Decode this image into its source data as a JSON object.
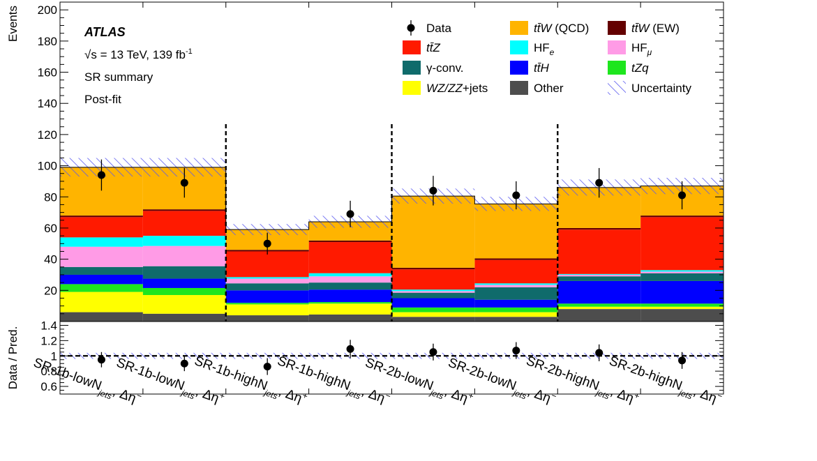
{
  "chart_data": {
    "type": "bar",
    "stacked": true,
    "experiment": "ATLAS",
    "energy_label": "s = 13 TeV, 139 fb",
    "energy_sup": "-1",
    "annotations": [
      "SR summary",
      "Post-fit"
    ],
    "ylabel": "Events",
    "ylim": [
      0,
      205
    ],
    "yticks": [
      20,
      40,
      60,
      80,
      100,
      120,
      140,
      160,
      180,
      200
    ],
    "ratio_ylabel": "Data / Pred.",
    "ratio_ylim": [
      0.5,
      1.45
    ],
    "ratio_yticks": [
      "1.4",
      "1.2",
      "1",
      "0.8",
      "0.6"
    ],
    "categories": [
      {
        "main": "SR-1b-lowN",
        "sub": "jets",
        "tail": ", Δη",
        "sign": "−"
      },
      {
        "main": "SR-1b-lowN",
        "sub": "jets",
        "tail": ", Δη",
        "sign": "+"
      },
      {
        "main": "SR-1b-highN",
        "sub": "jets",
        "tail": ", Δη",
        "sign": "+"
      },
      {
        "main": "SR-1b-highN",
        "sub": "jets",
        "tail": ", Δη",
        "sign": "−"
      },
      {
        "main": "SR-2b-lowN",
        "sub": "jets",
        "tail": ", Δη",
        "sign": "+"
      },
      {
        "main": "SR-2b-lowN",
        "sub": "jets",
        "tail": ", Δη",
        "sign": "−"
      },
      {
        "main": "SR-2b-highN",
        "sub": "jets",
        "tail": ", Δη",
        "sign": "+"
      },
      {
        "main": "SR-2b-highN",
        "sub": "jets",
        "tail": ", Δη",
        "sign": "−"
      }
    ],
    "series": [
      {
        "name": "Other",
        "color": "#4d4d4d",
        "values": [
          6,
          5,
          4,
          4.5,
          3,
          3,
          8,
          8
        ]
      },
      {
        "name": "WZ/ZZ+jets",
        "color": "#ffff00",
        "values": [
          13,
          12,
          7,
          7,
          3,
          3,
          1.5,
          1.5
        ]
      },
      {
        "name": "tZq",
        "color": "#1ee61e",
        "values": [
          5,
          4.5,
          1,
          1,
          3,
          3,
          2,
          2
        ]
      },
      {
        "name": "ttH",
        "color": "#0000ff",
        "values": [
          6,
          6,
          8,
          8,
          6,
          5,
          14.5,
          14.5
        ]
      },
      {
        "name": "γ-conv.",
        "color": "#0f6b6b",
        "values": [
          5,
          8,
          4.5,
          4.5,
          3.5,
          8,
          3,
          5
        ]
      },
      {
        "name": "HFμ",
        "color": "#ff9be6",
        "values": [
          13,
          13,
          3,
          4,
          1,
          1.5,
          1,
          1
        ]
      },
      {
        "name": "HFe",
        "color": "#00ffff",
        "values": [
          6,
          6.5,
          1,
          2,
          1,
          1,
          0.5,
          1
        ]
      },
      {
        "name": "ttZ",
        "color": "#ff1a00",
        "values": [
          13,
          16,
          16.5,
          20,
          13,
          15,
          28.5,
          34
        ]
      },
      {
        "name": "ttW (EW)",
        "color": "#640000",
        "values": [
          1,
          1,
          1,
          1,
          1,
          1,
          1,
          1
        ]
      },
      {
        "name": "ttW (QCD)",
        "color": "#ffb400",
        "values": [
          31,
          27,
          13,
          12,
          46,
          35,
          26,
          19
        ]
      }
    ],
    "data": {
      "name": "Data",
      "values": [
        94,
        89,
        50,
        69,
        84,
        81,
        89,
        81
      ],
      "errors": [
        10,
        9.5,
        7,
        8.5,
        9.5,
        9,
        9.5,
        9
      ]
    },
    "uncertainty": {
      "name": "Uncertainty",
      "frac": 0.06
    },
    "ratio": {
      "values": [
        0.95,
        0.9,
        0.86,
        1.09,
        1.05,
        1.07,
        1.04,
        0.94
      ],
      "errors": [
        0.1,
        0.1,
        0.11,
        0.12,
        0.11,
        0.11,
        0.11,
        0.11
      ]
    },
    "dividers_after": [
      2,
      4,
      6
    ],
    "legend": {
      "placement": "top-right",
      "entries": [
        {
          "label": "Data",
          "color": "#000000",
          "kind": "marker"
        },
        {
          "label": "ttW (QCD)",
          "color": "#ffb400",
          "kind": "box",
          "fmt": "ttbar_w",
          "suffix": " (QCD)"
        },
        {
          "label": "ttW (EW)",
          "color": "#640000",
          "kind": "box",
          "fmt": "ttbar_w",
          "suffix": " (EW)"
        },
        {
          "label": "ttZ",
          "color": "#ff1a00",
          "kind": "box",
          "fmt": "ttbar_x",
          "x": "Z"
        },
        {
          "label": "HFe",
          "color": "#00ffff",
          "kind": "box",
          "fmt": "sub",
          "base": "HF",
          "sub": "e"
        },
        {
          "label": "HFμ",
          "color": "#ff9be6",
          "kind": "box",
          "fmt": "sub",
          "base": "HF",
          "sub": "μ"
        },
        {
          "label": "γ-conv.",
          "color": "#0f6b6b",
          "kind": "box",
          "fmt": "plain"
        },
        {
          "label": "ttH",
          "color": "#0000ff",
          "kind": "box",
          "fmt": "ttbar_x",
          "x": "H"
        },
        {
          "label": "tZq",
          "color": "#1ee61e",
          "kind": "box",
          "fmt": "italic"
        },
        {
          "label": "WZ/ZZ+jets",
          "color": "#ffff00",
          "kind": "box",
          "fmt": "italic_pre",
          "ital": "WZ/ZZ",
          "rest": "+jets"
        },
        {
          "label": "Other",
          "color": "#4d4d4d",
          "kind": "box",
          "fmt": "plain"
        },
        {
          "label": "Uncertainty",
          "color": "#5a5af0",
          "kind": "hatch",
          "fmt": "plain"
        }
      ]
    }
  }
}
